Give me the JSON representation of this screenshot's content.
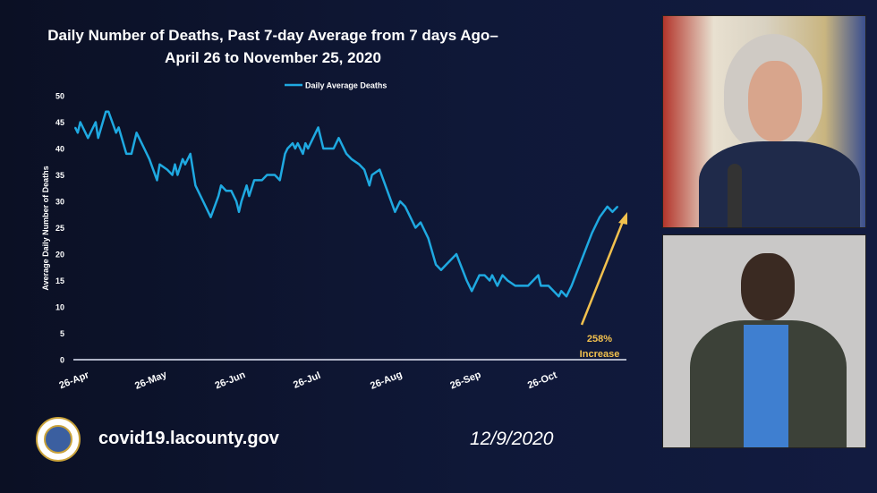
{
  "slide": {
    "title_line1": "Daily Number of Deaths, Past 7-day Average from 7 days Ago–",
    "title_line2": "April 26 to November 25, 2020",
    "website": "covid19.lacounty.gov",
    "date": "12/9/2020"
  },
  "colors": {
    "line": "#1fa9e1",
    "annotation": "#f2c14e",
    "background": "#0f1838",
    "text": "#ffffff"
  },
  "chart_data": {
    "type": "line",
    "title": "Daily Number of Deaths, Past 7-day Average from 7 days Ago– April 26 to November 25, 2020",
    "xlabel": "",
    "ylabel": "Average Daily Number of Deaths",
    "ylim": [
      0,
      50
    ],
    "yticks": [
      "0",
      "5",
      "10",
      "15",
      "20",
      "25",
      "30",
      "35",
      "40",
      "45",
      "50"
    ],
    "xticks": [
      "26-Apr",
      "26-May",
      "26-Jun",
      "26-Jul",
      "26-Aug",
      "26-Sep",
      "26-Oct"
    ],
    "xlim": [
      "2020-04-26",
      "2020-11-25"
    ],
    "grid": false,
    "legend": "top-center",
    "series": [
      {
        "name": "Daily Average Deaths",
        "x": [
          "2020-04-26",
          "2020-04-27",
          "2020-04-28",
          "2020-05-01",
          "2020-05-04",
          "2020-05-05",
          "2020-05-08",
          "2020-05-09",
          "2020-05-12",
          "2020-05-13",
          "2020-05-16",
          "2020-05-18",
          "2020-05-20",
          "2020-05-23",
          "2020-05-25",
          "2020-05-28",
          "2020-05-29",
          "2020-06-01",
          "2020-06-03",
          "2020-06-04",
          "2020-06-05",
          "2020-06-07",
          "2020-06-08",
          "2020-06-10",
          "2020-06-12",
          "2020-06-15",
          "2020-06-18",
          "2020-06-21",
          "2020-06-22",
          "2020-06-24",
          "2020-06-26",
          "2020-06-28",
          "2020-06-29",
          "2020-06-30",
          "2020-07-02",
          "2020-07-03",
          "2020-07-05",
          "2020-07-08",
          "2020-07-10",
          "2020-07-13",
          "2020-07-15",
          "2020-07-17",
          "2020-07-18",
          "2020-07-20",
          "2020-07-21",
          "2020-07-22",
          "2020-07-24",
          "2020-07-25",
          "2020-07-26",
          "2020-07-28",
          "2020-07-30",
          "2020-08-01",
          "2020-08-05",
          "2020-08-07",
          "2020-08-10",
          "2020-08-12",
          "2020-08-15",
          "2020-08-17",
          "2020-08-19",
          "2020-08-20",
          "2020-08-23",
          "2020-08-26",
          "2020-08-29",
          "2020-08-31",
          "2020-09-02",
          "2020-09-03",
          "2020-09-06",
          "2020-09-08",
          "2020-09-11",
          "2020-09-14",
          "2020-09-16",
          "2020-09-18",
          "2020-09-22",
          "2020-09-26",
          "2020-09-28",
          "2020-10-01",
          "2020-10-03",
          "2020-10-05",
          "2020-10-06",
          "2020-10-08",
          "2020-10-10",
          "2020-10-12",
          "2020-10-15",
          "2020-10-20",
          "2020-10-22",
          "2020-10-24",
          "2020-10-25",
          "2020-10-28",
          "2020-11-01",
          "2020-11-02",
          "2020-11-04",
          "2020-11-06",
          "2020-11-10",
          "2020-11-14",
          "2020-11-17",
          "2020-11-20",
          "2020-11-22",
          "2020-11-24"
        ],
        "values": [
          44,
          43,
          45,
          42,
          45,
          42,
          47,
          47,
          43,
          44,
          39,
          39,
          43,
          40,
          38,
          34,
          37,
          36,
          35,
          37,
          35,
          38,
          37,
          39,
          33,
          30,
          27,
          31,
          33,
          32,
          32,
          30,
          28,
          30,
          33,
          31,
          34,
          34,
          35,
          35,
          34,
          39,
          40,
          41,
          40,
          41,
          39,
          41,
          40,
          42,
          44,
          40,
          40,
          42,
          39,
          38,
          37,
          36,
          33,
          35,
          36,
          32,
          28,
          30,
          29,
          28,
          25,
          26,
          23,
          18,
          17,
          18,
          20,
          15,
          13,
          16,
          16,
          15,
          16,
          14,
          16,
          15,
          14,
          14,
          15,
          16,
          14,
          14,
          12,
          13,
          12,
          14,
          19,
          24,
          27,
          29,
          28,
          29
        ]
      }
    ],
    "annotations": [
      {
        "text_line1": "258%",
        "text_line2": "Increase",
        "type": "arrow"
      }
    ]
  }
}
